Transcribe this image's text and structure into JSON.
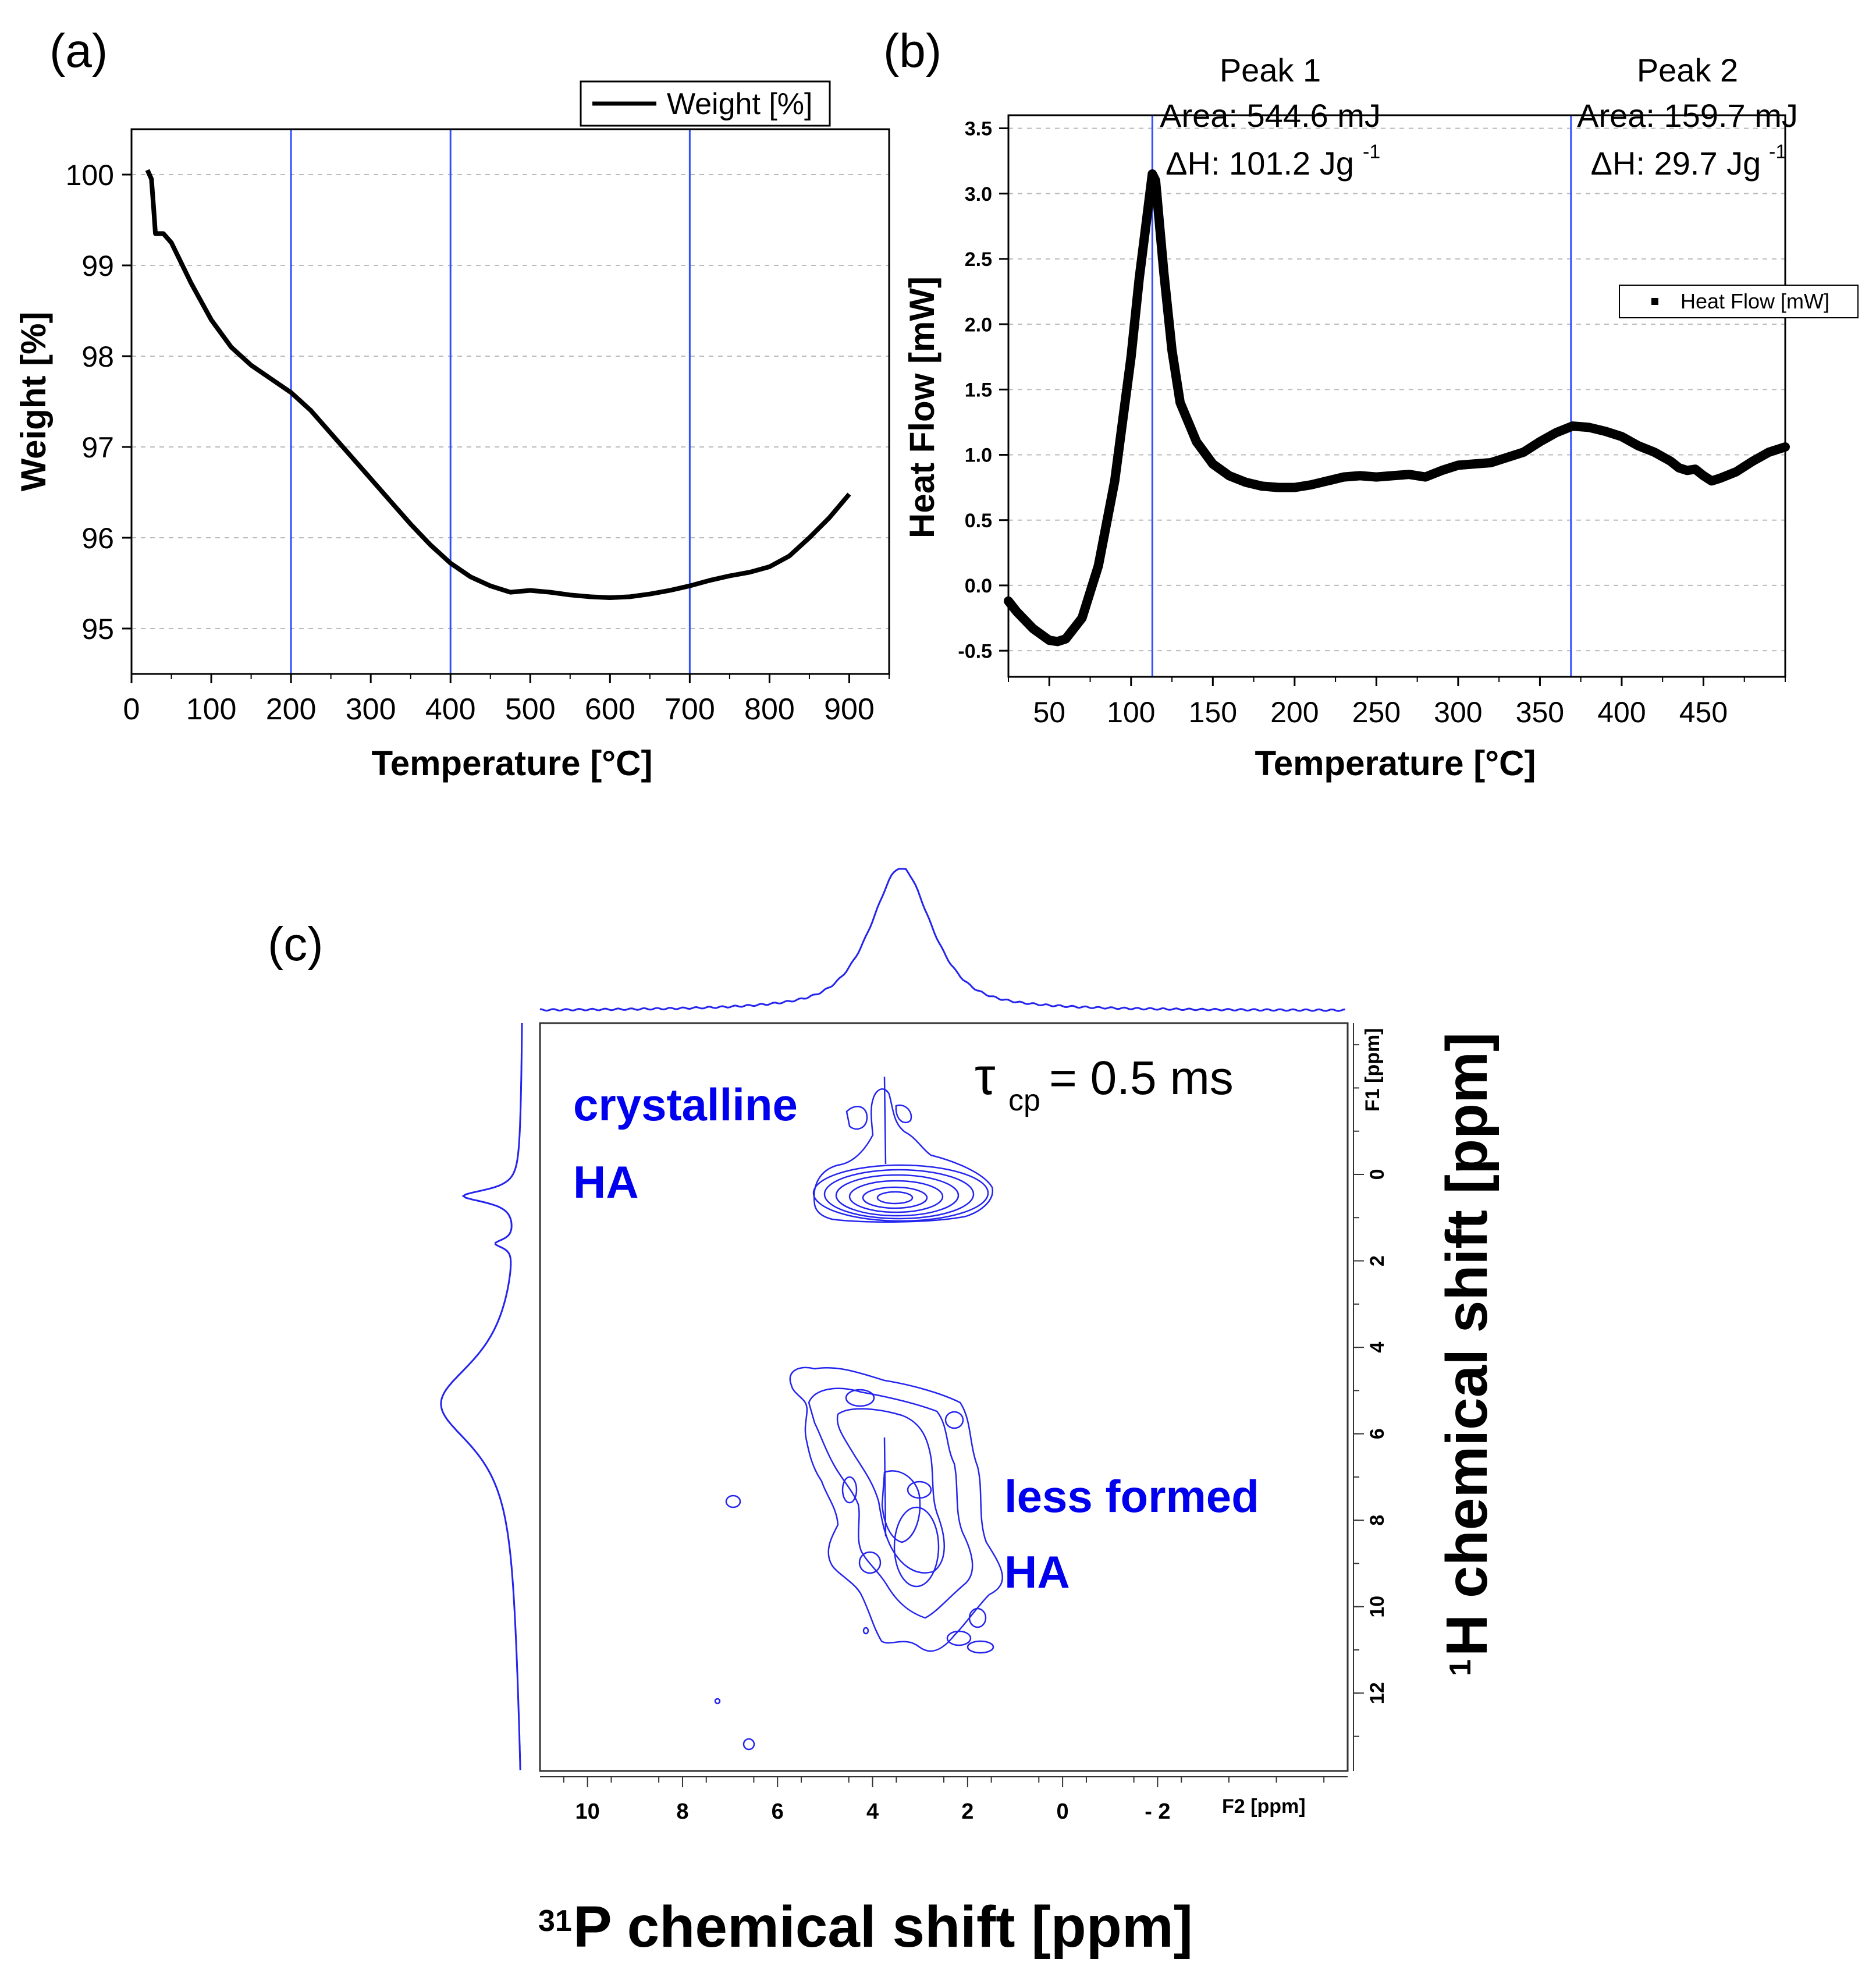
{
  "panel_labels": {
    "a": "(a)",
    "b": "(b)",
    "c": "(c)"
  },
  "colors": {
    "trace": "#000000",
    "guide": "#2f4fff",
    "nmr": "#2424ee",
    "nmr_text": "#0000ee"
  },
  "chart_data": [
    {
      "type": "line",
      "panel": "(a)",
      "title": "",
      "xlabel": "Temperature [°C]",
      "ylabel": "Weight [%]",
      "xlim": [
        0,
        950
      ],
      "ylim": [
        94.5,
        100.5
      ],
      "x_ticks": [
        0,
        100,
        200,
        300,
        400,
        500,
        600,
        700,
        800,
        900
      ],
      "y_ticks": [
        95,
        96,
        97,
        98,
        99,
        100
      ],
      "grid": "horizontal dashed",
      "legend": {
        "label": "Weight [%]",
        "position": "top-right"
      },
      "guide_lines_x": [
        200,
        400,
        700
      ],
      "series": [
        {
          "name": "Weight [%]",
          "x": [
            20,
            25,
            28,
            30,
            40,
            50,
            75,
            100,
            125,
            150,
            175,
            200,
            225,
            250,
            275,
            300,
            325,
            350,
            375,
            400,
            425,
            450,
            475,
            500,
            525,
            550,
            575,
            600,
            625,
            650,
            675,
            700,
            725,
            750,
            775,
            800,
            825,
            850,
            875,
            900
          ],
          "y": [
            100.05,
            99.95,
            99.6,
            99.35,
            99.35,
            99.25,
            98.8,
            98.4,
            98.1,
            97.9,
            97.75,
            97.6,
            97.4,
            97.15,
            96.9,
            96.65,
            96.4,
            96.15,
            95.92,
            95.72,
            95.57,
            95.47,
            95.4,
            95.42,
            95.4,
            95.37,
            95.35,
            95.34,
            95.35,
            95.38,
            95.42,
            95.47,
            95.53,
            95.58,
            95.62,
            95.68,
            95.8,
            96.0,
            96.22,
            96.48
          ]
        }
      ]
    },
    {
      "type": "line",
      "panel": "(b)",
      "title": "",
      "xlabel": "Temperature [°C]",
      "ylabel": "Heat Flow [mW]",
      "xlim": [
        25,
        500
      ],
      "ylim": [
        -0.7,
        3.6
      ],
      "x_ticks": [
        50,
        100,
        150,
        200,
        250,
        300,
        350,
        400,
        450
      ],
      "y_ticks": [
        -0.5,
        0.0,
        0.5,
        1.0,
        1.5,
        2.0,
        2.5,
        3.0,
        3.5
      ],
      "y_tick_labels": [
        "-0.5",
        "0.0",
        "0.5",
        "1.0",
        "1.5",
        "2.0",
        "2.5",
        "3.0",
        "3.5"
      ],
      "grid": "horizontal dashed",
      "legend": {
        "label": "Heat Flow [mW]",
        "position": "right"
      },
      "guide_lines_x": [
        113,
        369
      ],
      "annotations": [
        {
          "name": "Peak 1",
          "area": "Area: 544.6 mJ",
          "dh": "ΔH: 101.2 Jg",
          "sup": "-1",
          "x": 113
        },
        {
          "name": "Peak 2",
          "area": "Area: 159.7 mJ",
          "dh": "ΔH: 29.7 Jg",
          "sup": "-1",
          "x": 369
        }
      ],
      "series": [
        {
          "name": "Heat Flow [mW]",
          "x": [
            25,
            30,
            40,
            50,
            55,
            60,
            70,
            80,
            90,
            100,
            105,
            110,
            113,
            115,
            120,
            125,
            130,
            140,
            150,
            160,
            170,
            180,
            190,
            200,
            210,
            220,
            230,
            240,
            250,
            260,
            270,
            280,
            290,
            300,
            320,
            340,
            350,
            360,
            370,
            380,
            390,
            400,
            410,
            420,
            430,
            435,
            440,
            445,
            450,
            455,
            460,
            470,
            480,
            490,
            500
          ],
          "y": [
            -0.12,
            -0.2,
            -0.33,
            -0.42,
            -0.43,
            -0.41,
            -0.25,
            0.15,
            0.8,
            1.75,
            2.35,
            2.85,
            3.15,
            3.1,
            2.4,
            1.8,
            1.4,
            1.1,
            0.93,
            0.84,
            0.79,
            0.76,
            0.75,
            0.75,
            0.77,
            0.8,
            0.83,
            0.84,
            0.83,
            0.84,
            0.85,
            0.83,
            0.88,
            0.92,
            0.94,
            1.02,
            1.1,
            1.17,
            1.22,
            1.21,
            1.18,
            1.14,
            1.07,
            1.02,
            0.95,
            0.9,
            0.88,
            0.89,
            0.84,
            0.8,
            0.82,
            0.87,
            0.95,
            1.02,
            1.06
          ]
        }
      ]
    },
    {
      "type": "heatmap",
      "panel": "(c)",
      "title": "",
      "xlabel": "31P chemical shift [ppm]",
      "xlabel_sup": "31",
      "xlabel_main": "P chemical shift [ppm]",
      "ylabel": "1H chemical shift [ppm]",
      "ylabel_sup": "1",
      "ylabel_main": "H chemical shift [ppm]",
      "x_axis_name": "F2 [ppm]",
      "y_axis_name": "F1 [ppm]",
      "xlim": [
        11,
        -6
      ],
      "ylim": [
        -3.5,
        13.8
      ],
      "x_ticks": [
        10,
        8,
        6,
        4,
        2,
        0,
        -2
      ],
      "x_tick_labels": [
        "10",
        "8",
        "6",
        "4",
        "2",
        "0",
        "- 2"
      ],
      "y_ticks": [
        0,
        2,
        4,
        6,
        8,
        10,
        12
      ],
      "annotation_tau_symbol": "τ",
      "annotation_tau_sub": "cp",
      "annotation_tau_value": "= 0.5 ms",
      "regions": [
        {
          "label_line1": "crystalline",
          "label_line2": "HA",
          "center_f2": 3.4,
          "center_f1": 0.5
        },
        {
          "label_line1": "less formed",
          "label_line2": "HA",
          "center_f2": 3.0,
          "center_f1": 7.5
        }
      ],
      "projection_f2": {
        "peak_ppm": 3.4
      },
      "projection_f1": {
        "peaks_ppm": [
          0.5,
          1.6,
          5.3
        ]
      }
    }
  ]
}
